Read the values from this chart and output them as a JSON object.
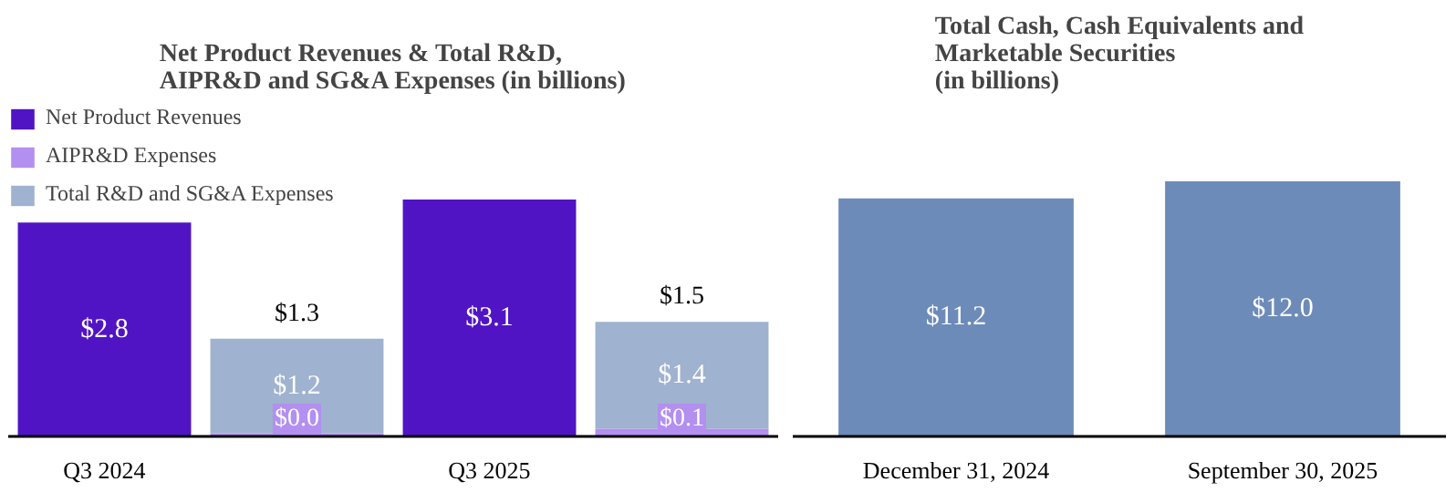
{
  "chart_data": [
    {
      "type": "bar",
      "title": "Net Product Revenues & Total R&D,\nAIPR&D and SG&A Expenses (in billions)",
      "categories": [
        "Q3 2024",
        null,
        "Q3 2025",
        null
      ],
      "stacked": true,
      "tick_labels": "x",
      "legend": "top left",
      "series": [
        {
          "name": "Net Product Revenues",
          "color": "#5014c4",
          "values": [
            2.8,
            null,
            3.1,
            null
          ],
          "value_labels": [
            "$2.8",
            null,
            "$3.1",
            null
          ]
        },
        {
          "name": "AIPR&D Expenses",
          "color": "#b38ff0",
          "values": [
            null,
            0.04,
            null,
            0.1
          ],
          "value_labels": [
            null,
            "$0.0",
            null,
            "$0.1"
          ]
        },
        {
          "name": "Total R&D and SG&A Expenses",
          "color": "#9fb2cf",
          "values": [
            null,
            1.24,
            null,
            1.4
          ],
          "value_labels": [
            null,
            "$1.2",
            null,
            "$1.4"
          ]
        }
      ],
      "totals": [
        null,
        "$1.3",
        null,
        "$1.5"
      ]
    },
    {
      "type": "bar",
      "title": "Total Cash, Cash Equivalents and\nMarketable Securities\n(in billions)",
      "categories": [
        "December 31, 2024",
        "September 30, 2025"
      ],
      "tick_labels": "x",
      "series": [
        {
          "color": "#6d8bb8",
          "values": [
            11.2,
            12.0
          ],
          "value_labels": [
            "$11.2",
            "$12.0"
          ]
        }
      ]
    }
  ]
}
